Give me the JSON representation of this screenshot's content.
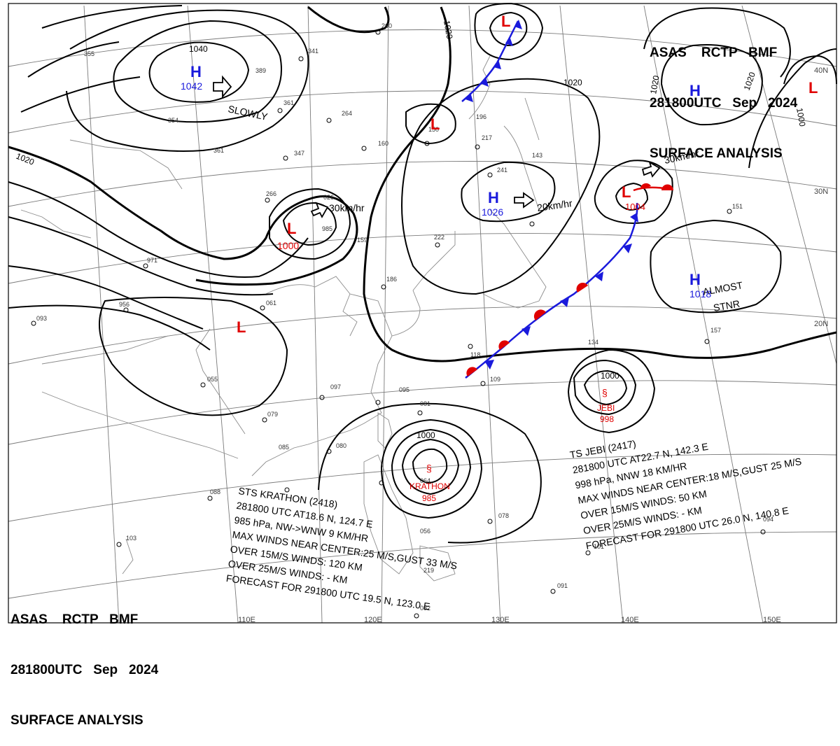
{
  "header_top": {
    "line1": "ASAS    RCTP   BMF",
    "line2": "281800UTC   Sep   2024",
    "line3": "SURFACE ANALYSIS"
  },
  "header_bottom": {
    "line1": "ASAS    RCTP   BMF",
    "line2": "281800UTC   Sep   2024",
    "line3": "SURFACE ANALYSIS"
  },
  "pressure_centers": [
    {
      "id": "h-mongolia",
      "type": "H",
      "value": "1042"
    },
    {
      "id": "h-japan-sea",
      "type": "H",
      "value": "1026"
    },
    {
      "id": "h-pacific",
      "type": "H",
      "value": "1018"
    },
    {
      "id": "h-northeast",
      "type": "H",
      "value": ""
    },
    {
      "id": "l-china-north",
      "type": "L",
      "value": "1000"
    },
    {
      "id": "l-korea",
      "type": "L",
      "value": ""
    },
    {
      "id": "l-east",
      "type": "L",
      "value": "1004"
    },
    {
      "id": "l-top",
      "type": "L",
      "value": ""
    },
    {
      "id": "l-south-china",
      "type": "L",
      "value": ""
    },
    {
      "id": "l-far-right",
      "type": "L",
      "value": ""
    }
  ],
  "isobar_labels": {
    "iso_1040": "1040",
    "iso_1020_left": "1020",
    "iso_1020_top": "1020",
    "iso_1020_center": "1020",
    "iso_1020_ne1": "1020",
    "iso_1020_ne2": "1020",
    "iso_1000_ne": "1000",
    "iso_1000_jebi": "1000",
    "iso_1000_krathon": "1000"
  },
  "motion_labels": {
    "slowly": "SLOWLY",
    "china_low": "30km/hr",
    "japan_high": "20km/hr",
    "east_low": "30km/hr",
    "almost": "ALMOST",
    "stnr": "STNR"
  },
  "storms": {
    "jebi": {
      "name": "JEBI",
      "pressure": "998"
    },
    "krathon": {
      "name": "KRATHON",
      "pressure": "985"
    }
  },
  "jebi_bulletin": [
    "TS  JEBI  (2417)",
    "281800 UTC  AT22.7 N, 142.3 E",
    "998 hPa, NNW  18 KM/HR",
    "MAX WINDS NEAR CENTER:18 M/S,GUST 25 M/S",
    "OVER 15M/S WINDS: 50 KM",
    "OVER 25M/S WINDS: - KM",
    "FORECAST FOR 291800 UTC 26.0 N, 140.8 E"
  ],
  "krathon_bulletin": [
    "STS  KRATHON  (2418)",
    "281800 UTC  AT18.6 N, 124.7 E",
    "985 hPa, NW->WNW  9 KM/HR",
    "MAX WINDS NEAR CENTER:25 M/S,GUST 33 M/S",
    "OVER 15M/S WINDS: 120 KM",
    "OVER 25M/S WINDS: - KM",
    "FORECAST FOR 291800 UTC 19.5 N, 123.0 E"
  ],
  "lat_labels": [
    "40N",
    "30N",
    "20N"
  ],
  "lon_labels": [
    "110E",
    "120E",
    "130E",
    "140E",
    "150E"
  ],
  "colors": {
    "high": "#1a1adc",
    "low": "#e00000",
    "cold_front": "#1a1adc",
    "warm_front": "#e00000",
    "isobar": "#000000",
    "grid": "#808080",
    "coast": "#909090"
  }
}
